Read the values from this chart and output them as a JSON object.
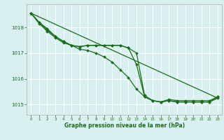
{
  "background_color": "#d8f0f0",
  "grid_color": "#ffffff",
  "line_color": "#1a6b1a",
  "xlabel": "Graphe pression niveau de la mer (hPa)",
  "xlim": [
    -0.5,
    23.5
  ],
  "ylim": [
    1014.6,
    1018.9
  ],
  "yticks": [
    1015,
    1016,
    1017,
    1018
  ],
  "xticks": [
    0,
    1,
    2,
    3,
    4,
    5,
    6,
    7,
    8,
    9,
    10,
    11,
    12,
    13,
    14,
    15,
    16,
    17,
    18,
    19,
    20,
    21,
    22,
    23
  ],
  "line1_straight": {
    "x": [
      0,
      23
    ],
    "y": [
      1018.55,
      1015.25
    ]
  },
  "line2_steep": {
    "x": [
      0,
      1,
      2,
      3,
      4,
      5,
      6,
      7,
      8,
      9,
      10,
      11,
      12,
      13,
      14,
      15,
      16,
      17,
      18,
      19,
      20,
      21,
      22,
      23
    ],
    "y": [
      1018.55,
      1018.2,
      1017.95,
      1017.65,
      1017.45,
      1017.3,
      1017.15,
      1017.1,
      1017.0,
      1016.85,
      1016.65,
      1016.35,
      1016.05,
      1015.6,
      1015.3,
      1015.15,
      1015.1,
      1015.15,
      1015.1,
      1015.1,
      1015.1,
      1015.1,
      1015.1,
      1015.25
    ]
  },
  "line3_plateau": {
    "x": [
      0,
      1,
      2,
      3,
      4,
      5,
      6,
      7,
      8,
      9,
      10,
      11,
      12,
      13,
      14,
      15,
      16,
      17,
      18,
      19,
      20,
      21,
      22,
      23
    ],
    "y": [
      1018.55,
      1018.15,
      1017.85,
      1017.6,
      1017.4,
      1017.3,
      1017.25,
      1017.3,
      1017.3,
      1017.3,
      1017.3,
      1017.3,
      1017.2,
      1017.0,
      1015.35,
      1015.15,
      1015.1,
      1015.15,
      1015.1,
      1015.1,
      1015.1,
      1015.1,
      1015.1,
      1015.3
    ]
  },
  "line4_drop": {
    "x": [
      0,
      1,
      2,
      3,
      4,
      5,
      6,
      7,
      8,
      9,
      10,
      11,
      12,
      13,
      14,
      15,
      16,
      17,
      18,
      19,
      20,
      21,
      22,
      23
    ],
    "y": [
      1018.55,
      1018.2,
      1017.9,
      1017.65,
      1017.45,
      1017.3,
      1017.25,
      1017.3,
      1017.3,
      1017.3,
      1017.3,
      1017.3,
      1017.2,
      1016.55,
      1015.3,
      1015.15,
      1015.1,
      1015.2,
      1015.15,
      1015.15,
      1015.15,
      1015.15,
      1015.15,
      1015.3
    ]
  }
}
